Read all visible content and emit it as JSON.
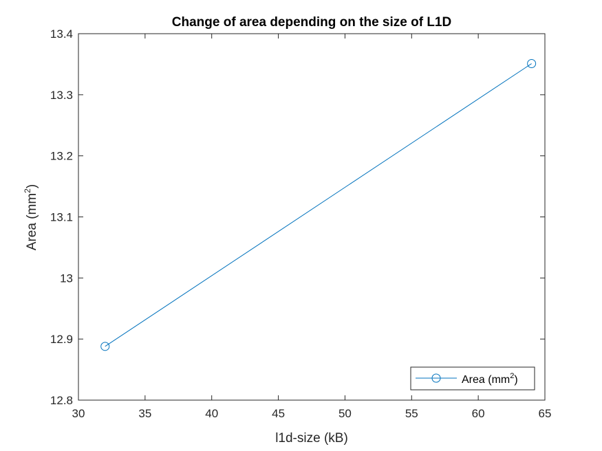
{
  "chart_data": {
    "type": "line",
    "title": "Change of area depending on the size of L1D",
    "xlabel": "l1d-size (kB)",
    "ylabel": {
      "prefix": "Area (mm",
      "sup": "2",
      "suffix": ")"
    },
    "xlim": [
      30,
      65
    ],
    "ylim": [
      12.8,
      13.4
    ],
    "xticks": [
      30,
      35,
      40,
      45,
      50,
      55,
      60,
      65
    ],
    "yticks": [
      12.8,
      12.9,
      13,
      13.1,
      13.2,
      13.3,
      13.4
    ],
    "xtick_labels": [
      "30",
      "35",
      "40",
      "45",
      "50",
      "55",
      "60",
      "65"
    ],
    "ytick_labels": [
      "12.8",
      "12.9",
      "13",
      "13.1",
      "13.2",
      "13.3",
      "13.4"
    ],
    "grid": false,
    "legend_position": "bottom-right",
    "series": [
      {
        "name": {
          "prefix": "Area (mm",
          "sup": "2",
          "suffix": ")"
        },
        "x": [
          32,
          64
        ],
        "y": [
          12.888,
          13.351
        ],
        "marker": "circle",
        "color": "#0072BD"
      }
    ]
  }
}
